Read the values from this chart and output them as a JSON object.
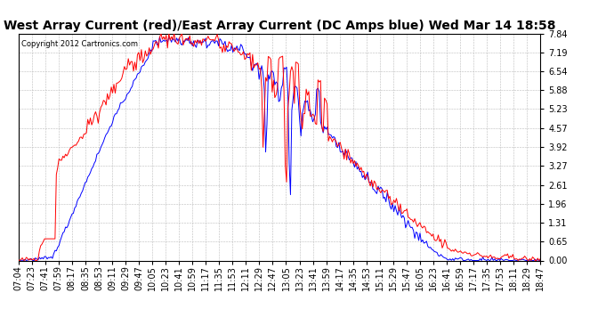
{
  "title": "West Array Current (red)/East Array Current (DC Amps blue) Wed Mar 14 18:58",
  "copyright": "Copyright 2012 Cartronics.com",
  "y_ticks": [
    0.0,
    0.65,
    1.31,
    1.96,
    2.61,
    3.27,
    3.92,
    4.57,
    5.23,
    5.88,
    6.54,
    7.19,
    7.84
  ],
  "ylim": [
    0.0,
    7.84
  ],
  "x_labels": [
    "07:04",
    "07:23",
    "07:41",
    "07:59",
    "08:17",
    "08:35",
    "08:53",
    "09:11",
    "09:29",
    "09:47",
    "10:05",
    "10:23",
    "10:41",
    "10:59",
    "11:17",
    "11:35",
    "11:53",
    "12:11",
    "12:29",
    "12:47",
    "13:05",
    "13:23",
    "13:41",
    "13:59",
    "14:17",
    "14:35",
    "14:53",
    "15:11",
    "15:29",
    "15:47",
    "16:05",
    "16:23",
    "16:41",
    "16:59",
    "17:17",
    "17:35",
    "17:53",
    "18:11",
    "18:29",
    "18:47"
  ],
  "background_color": "#ffffff",
  "grid_color": "#bbbbbb",
  "line_red": "red",
  "line_blue": "blue",
  "title_fontsize": 10,
  "tick_fontsize": 7
}
